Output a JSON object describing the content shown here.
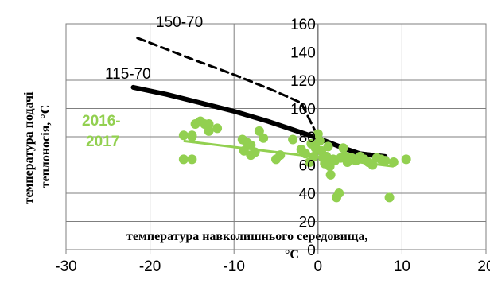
{
  "chart_data": {
    "type": "scatter",
    "ylabel": "температура подачі теплоносія, °С",
    "xlabel": "температура навколишнього середовища, °С",
    "xlim": [
      -30,
      20
    ],
    "ylim": [
      0,
      160
    ],
    "x_ticks": [
      "-30",
      "-20",
      "-10",
      "0",
      "10",
      "20"
    ],
    "y_ticks": [
      "0",
      "20",
      "40",
      "60",
      "80",
      "100",
      "120",
      "140",
      "160"
    ],
    "grid": true,
    "series": [
      {
        "name": "150-70",
        "style": "dashed-line",
        "color": "#000000",
        "points": [
          [
            -21.5,
            150
          ],
          [
            -15,
            135
          ],
          [
            -10,
            124
          ],
          [
            -5,
            112
          ],
          [
            -2,
            104
          ],
          [
            0,
            80
          ],
          [
            5,
            67
          ],
          [
            8,
            65
          ]
        ]
      },
      {
        "name": "115-70",
        "style": "solid-line",
        "color": "#000000",
        "points": [
          [
            -22,
            115
          ],
          [
            -18,
            110
          ],
          [
            -14,
            104
          ],
          [
            -10,
            98
          ],
          [
            -6,
            91
          ],
          [
            -3,
            85
          ],
          [
            0,
            79
          ],
          [
            3,
            72
          ],
          [
            5,
            68
          ],
          [
            8,
            66
          ]
        ]
      },
      {
        "name": "2016-2017",
        "style": "markers",
        "color": "#92d050",
        "points": [
          [
            -16,
            81
          ],
          [
            -15,
            81
          ],
          [
            -16,
            64
          ],
          [
            -15,
            64
          ],
          [
            -15,
            80
          ],
          [
            -14.6,
            89
          ],
          [
            -14,
            91
          ],
          [
            -13.5,
            89
          ],
          [
            -13,
            89
          ],
          [
            -13,
            84
          ],
          [
            -12,
            86
          ],
          [
            -9,
            78
          ],
          [
            -8.8,
            70
          ],
          [
            -8.5,
            76
          ],
          [
            -8,
            74
          ],
          [
            -8,
            67
          ],
          [
            -7.5,
            69
          ],
          [
            -7,
            84
          ],
          [
            -6.5,
            79
          ],
          [
            -5,
            64
          ],
          [
            -4.5,
            67
          ],
          [
            -3,
            78
          ],
          [
            -2,
            71
          ],
          [
            -1.5,
            68
          ],
          [
            -1,
            62
          ],
          [
            -0.8,
            75
          ],
          [
            -0.5,
            66
          ],
          [
            -0.3,
            72
          ],
          [
            0,
            82
          ],
          [
            0.2,
            77
          ],
          [
            0.4,
            70
          ],
          [
            0.6,
            65
          ],
          [
            0.8,
            61
          ],
          [
            1,
            66
          ],
          [
            1.2,
            73
          ],
          [
            1.4,
            59
          ],
          [
            1.5,
            53
          ],
          [
            1.8,
            64
          ],
          [
            2,
            63
          ],
          [
            2.2,
            37
          ],
          [
            2.5,
            40
          ],
          [
            2.7,
            65
          ],
          [
            3,
            72
          ],
          [
            3.3,
            66
          ],
          [
            3.5,
            62
          ],
          [
            4,
            65
          ],
          [
            4.5,
            63
          ],
          [
            5,
            66
          ],
          [
            5.5,
            64
          ],
          [
            6,
            62
          ],
          [
            6.5,
            60
          ],
          [
            7,
            65
          ],
          [
            7.5,
            64
          ],
          [
            8,
            63
          ],
          [
            8.5,
            37
          ],
          [
            9,
            62
          ],
          [
            10.5,
            64
          ]
        ],
        "trend": [
          [
            -16,
            77
          ],
          [
            9,
            59
          ]
        ]
      }
    ],
    "annotations": [
      "150-70",
      "115-70",
      "2016-\n2017"
    ]
  }
}
